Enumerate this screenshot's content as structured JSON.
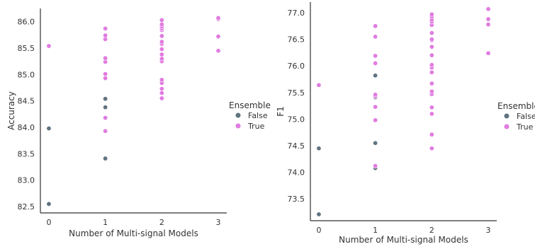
{
  "chart_data": [
    {
      "type": "scatter",
      "xlabel": "Number of Multi-signal Models",
      "ylabel": "Accuracy",
      "xticks": [
        "0",
        "1",
        "2",
        "3"
      ],
      "yticks": [
        "82.5",
        "83.0",
        "83.5",
        "84.0",
        "84.5",
        "85.0",
        "85.5",
        "86.0"
      ],
      "xlim": [
        -0.15,
        3.15
      ],
      "ylim": [
        82.38,
        86.25
      ],
      "legend": {
        "title": "Ensemble",
        "position": "right"
      },
      "series": [
        {
          "name": "False",
          "color": "#5f7380",
          "x": [
            0,
            0,
            1,
            1,
            1,
            1
          ],
          "y": [
            82.55,
            83.98,
            83.41,
            84.18,
            84.38,
            84.54
          ]
        },
        {
          "name": "True",
          "color": "#e07ce0",
          "x": [
            0,
            1,
            1,
            1,
            1,
            1,
            1,
            1,
            1,
            1,
            2,
            2,
            2,
            2,
            2,
            2,
            2,
            2,
            2,
            2,
            2,
            2,
            2,
            2,
            2,
            2,
            2,
            3,
            3,
            3,
            3
          ],
          "y": [
            85.54,
            83.93,
            84.93,
            85.01,
            85.24,
            85.31,
            85.67,
            85.74,
            85.87,
            84.18,
            84.55,
            84.65,
            84.73,
            84.84,
            84.9,
            85.25,
            85.3,
            85.38,
            85.48,
            85.58,
            85.62,
            85.73,
            85.84,
            85.87,
            85.91,
            85.95,
            86.03,
            85.45,
            85.72,
            86.05,
            86.07
          ]
        }
      ]
    },
    {
      "type": "scatter",
      "xlabel": "Number of Multi-signal Models",
      "ylabel": "F1",
      "xticks": [
        "0",
        "1",
        "2",
        "3"
      ],
      "yticks": [
        "73.5",
        "74.0",
        "74.5",
        "75.0",
        "75.5",
        "76.0",
        "76.5",
        "77.0"
      ],
      "xlim": [
        -0.15,
        3.15
      ],
      "ylim": [
        73.09,
        77.2
      ],
      "legend": {
        "title": "Ensemble",
        "position": "right"
      },
      "series": [
        {
          "name": "False",
          "color": "#5f7380",
          "x": [
            0,
            0,
            1,
            1,
            1,
            1
          ],
          "y": [
            73.21,
            74.45,
            74.08,
            74.55,
            75.41,
            75.82
          ]
        },
        {
          "name": "True",
          "color": "#e07ce0",
          "x": [
            0,
            1,
            1,
            1,
            1,
            1,
            1,
            1,
            1,
            1,
            1,
            2,
            2,
            2,
            2,
            2,
            2,
            2,
            2,
            2,
            2,
            2,
            2,
            2,
            2,
            2,
            2,
            2,
            2,
            2,
            2,
            3,
            3,
            3,
            3
          ],
          "y": [
            75.64,
            74.12,
            74.98,
            75.23,
            75.43,
            75.46,
            76.05,
            76.19,
            76.55,
            76.75,
            74.12,
            74.45,
            74.71,
            75.1,
            75.22,
            75.47,
            75.52,
            75.67,
            75.88,
            75.97,
            76.02,
            76.36,
            76.48,
            76.62,
            76.77,
            76.83,
            76.87,
            76.93,
            76.97,
            76.2,
            76.5,
            76.24,
            76.78,
            76.88,
            77.07
          ]
        }
      ]
    }
  ]
}
